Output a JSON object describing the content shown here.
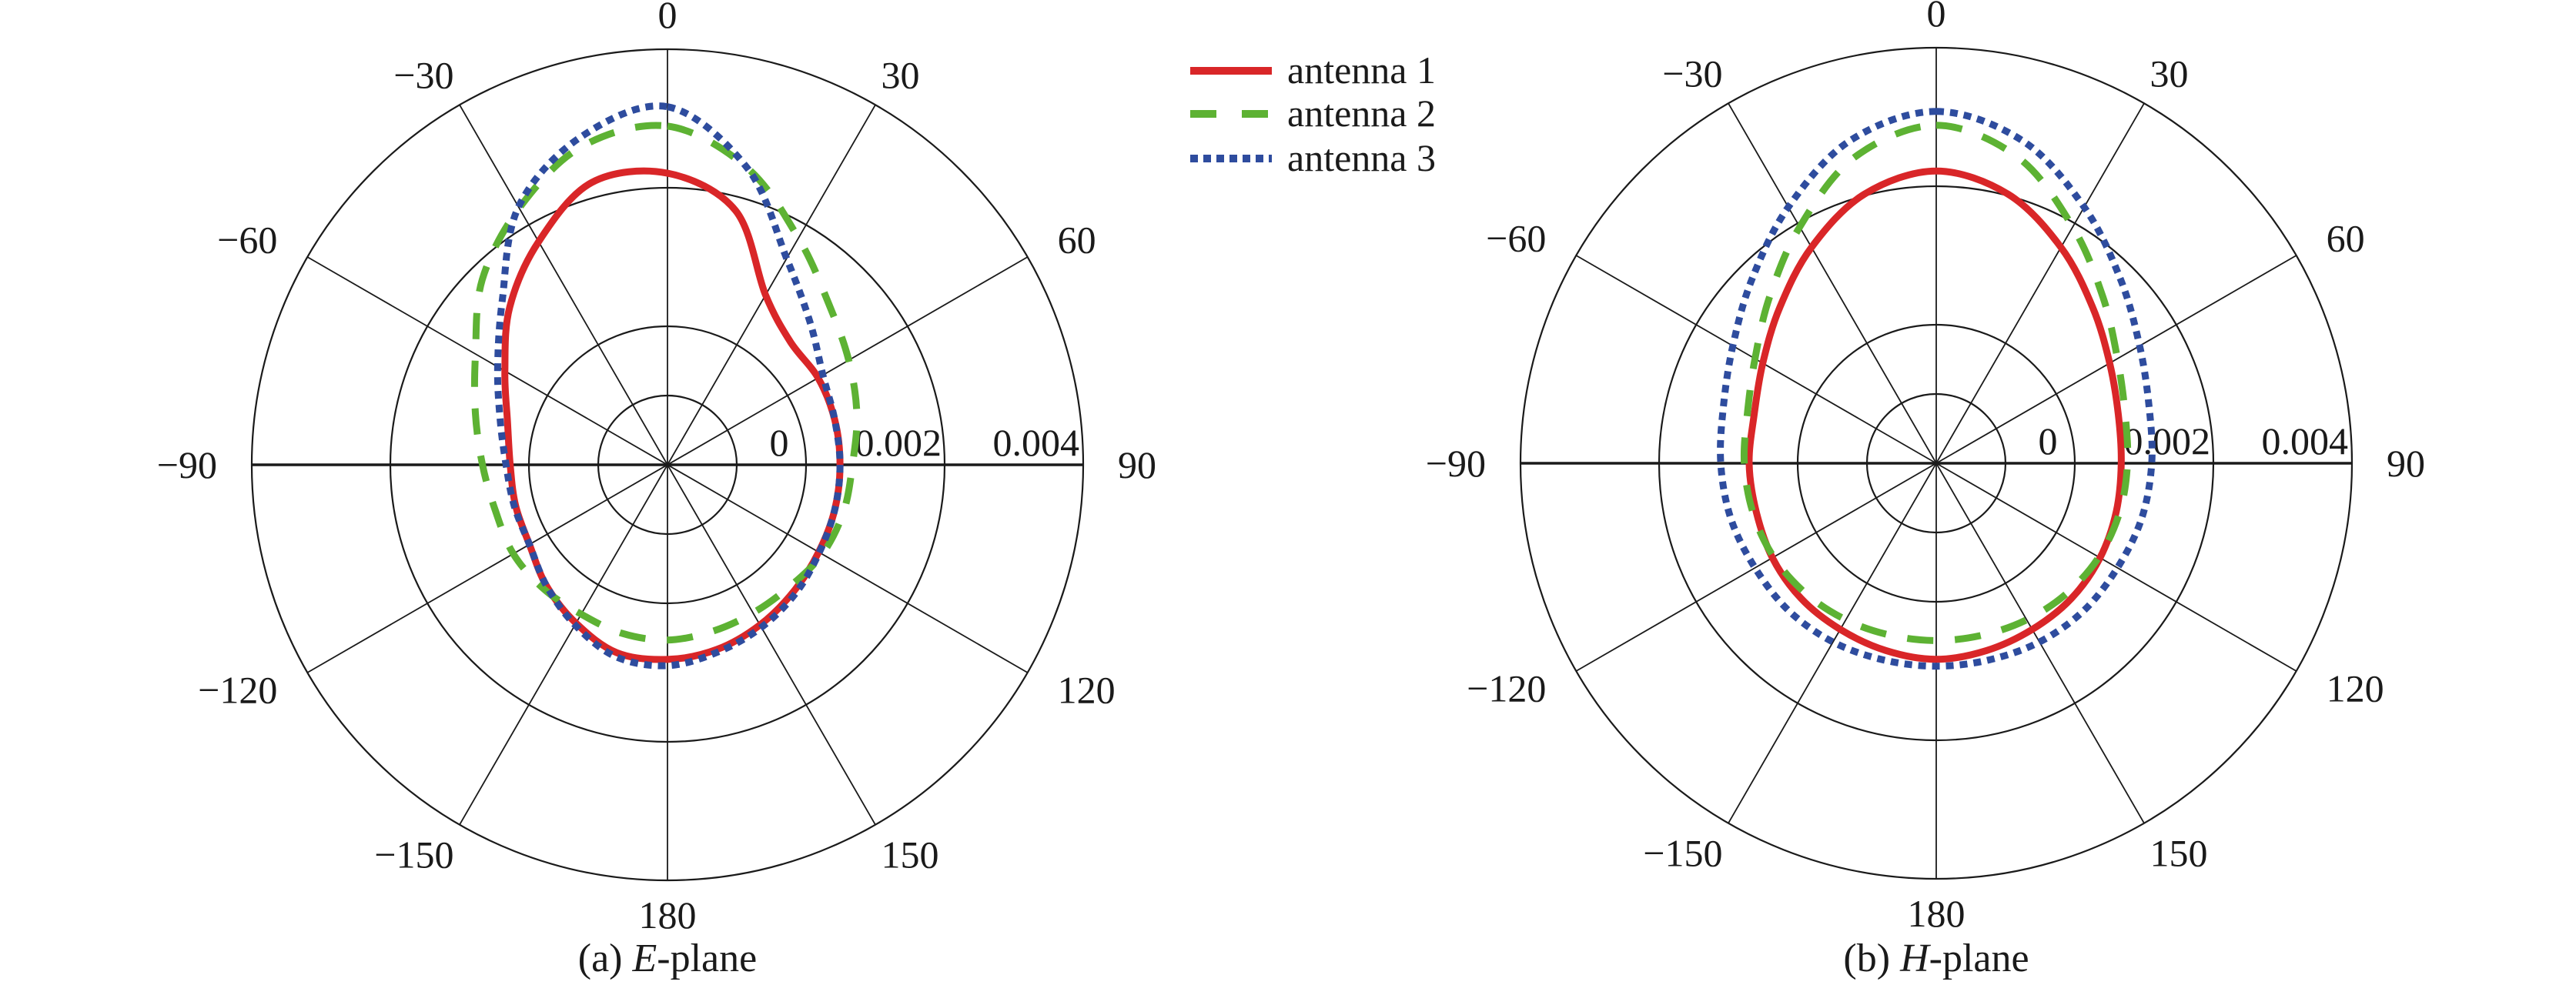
{
  "chart_data": {
    "type": "polar-line",
    "legend": {
      "placement": "top-center",
      "entries": [
        "antenna 1",
        "antenna 2",
        "antenna 3"
      ]
    },
    "series_styles": [
      {
        "name": "antenna 1",
        "color": "#d92628",
        "style": "solid"
      },
      {
        "name": "antenna 2",
        "color": "#5db233",
        "style": "dashed"
      },
      {
        "name": "antenna 3",
        "color": "#2e4c9e",
        "style": "dotted"
      }
    ],
    "angles": [
      0,
      15,
      30,
      45,
      60,
      75,
      90,
      105,
      120,
      135,
      150,
      165,
      180,
      -165,
      -150,
      -135,
      -120,
      -105,
      -90,
      -75,
      -60,
      -45,
      -30,
      -15
    ],
    "angle_tick_labels": [
      "0",
      "30",
      "60",
      "90",
      "120",
      "150",
      "180",
      "−150",
      "−120",
      "−90",
      "−60",
      "−30"
    ],
    "radial_range": [
      -0.002,
      0.004
    ],
    "radial_rings": [
      -0.001,
      0,
      0.002,
      0.004
    ],
    "radial_tick_labels": [
      "0",
      "0.002",
      "0.004"
    ],
    "grid": true,
    "charts": [
      {
        "caption_prefix": "(a) ",
        "caption_italic": "E",
        "caption_suffix": "-plane",
        "series": [
          {
            "name": "antenna 1",
            "values": [
              0.00221,
              0.0018,
              0.00083,
              0.00051,
              0.00051,
              0.0005,
              0.00049,
              0.0005,
              0.00052,
              0.00058,
              0.00067,
              0.00076,
              0.00081,
              0.00081,
              0.00064,
              0.00047,
              0.0003,
              0.00027,
              0.00027,
              0.00039,
              0.00071,
              0.00122,
              0.00172,
              0.00222
            ]
          },
          {
            "name": "antenna 2",
            "values": [
              0.00289,
              0.00244,
              0.00178,
              0.00129,
              0.00102,
              0.00083,
              0.00067,
              0.00063,
              0.00058,
              0.00049,
              0.00047,
              0.00049,
              0.00053,
              0.00052,
              0.00049,
              0.00053,
              0.00057,
              0.00057,
              0.00067,
              0.00087,
              0.0012,
              0.00178,
              0.00228,
              0.00276
            ]
          },
          {
            "name": "antenna 3",
            "values": [
              0.00317,
              0.00244,
              0.00144,
              0.00091,
              0.00059,
              0.0005,
              0.00049,
              0.0005,
              0.00053,
              0.00062,
              0.00071,
              0.0008,
              0.0009,
              0.00087,
              0.00067,
              0.00047,
              0.0003,
              0.00029,
              0.00033,
              0.0005,
              0.00083,
              0.00137,
              0.0023,
              0.00289
            ]
          }
        ]
      },
      {
        "caption_prefix": "(b) ",
        "caption_italic": "H",
        "caption_suffix": "-plane",
        "series": [
          {
            "name": "antenna 1",
            "values": [
              0.00222,
              0.00202,
              0.0016,
              0.00119,
              0.00089,
              0.00072,
              0.00067,
              0.00069,
              0.00073,
              0.00076,
              0.00077,
              0.0008,
              0.00083,
              0.0008,
              0.00077,
              0.00076,
              0.00073,
              0.00069,
              0.0007,
              0.00072,
              0.00089,
              0.00119,
              0.0016,
              0.00202
            ]
          },
          {
            "name": "antenna 2",
            "values": [
              0.00288,
              0.00257,
              0.00194,
              0.0014,
              0.00102,
              0.00082,
              0.00076,
              0.00074,
              0.00071,
              0.00066,
              0.00061,
              0.00057,
              0.00056,
              0.00057,
              0.00061,
              0.00066,
              0.00071,
              0.00074,
              0.00077,
              0.00082,
              0.00102,
              0.0014,
              0.00194,
              0.00257
            ]
          },
          {
            "name": "antenna 3",
            "values": [
              0.00308,
              0.00282,
              0.00227,
              0.00176,
              0.00139,
              0.00118,
              0.00111,
              0.00107,
              0.00102,
              0.00101,
              0.00098,
              0.00094,
              0.00093,
              0.00094,
              0.00098,
              0.00101,
              0.00102,
              0.00107,
              0.00111,
              0.00118,
              0.00139,
              0.00176,
              0.00227,
              0.00282
            ]
          }
        ]
      }
    ]
  }
}
